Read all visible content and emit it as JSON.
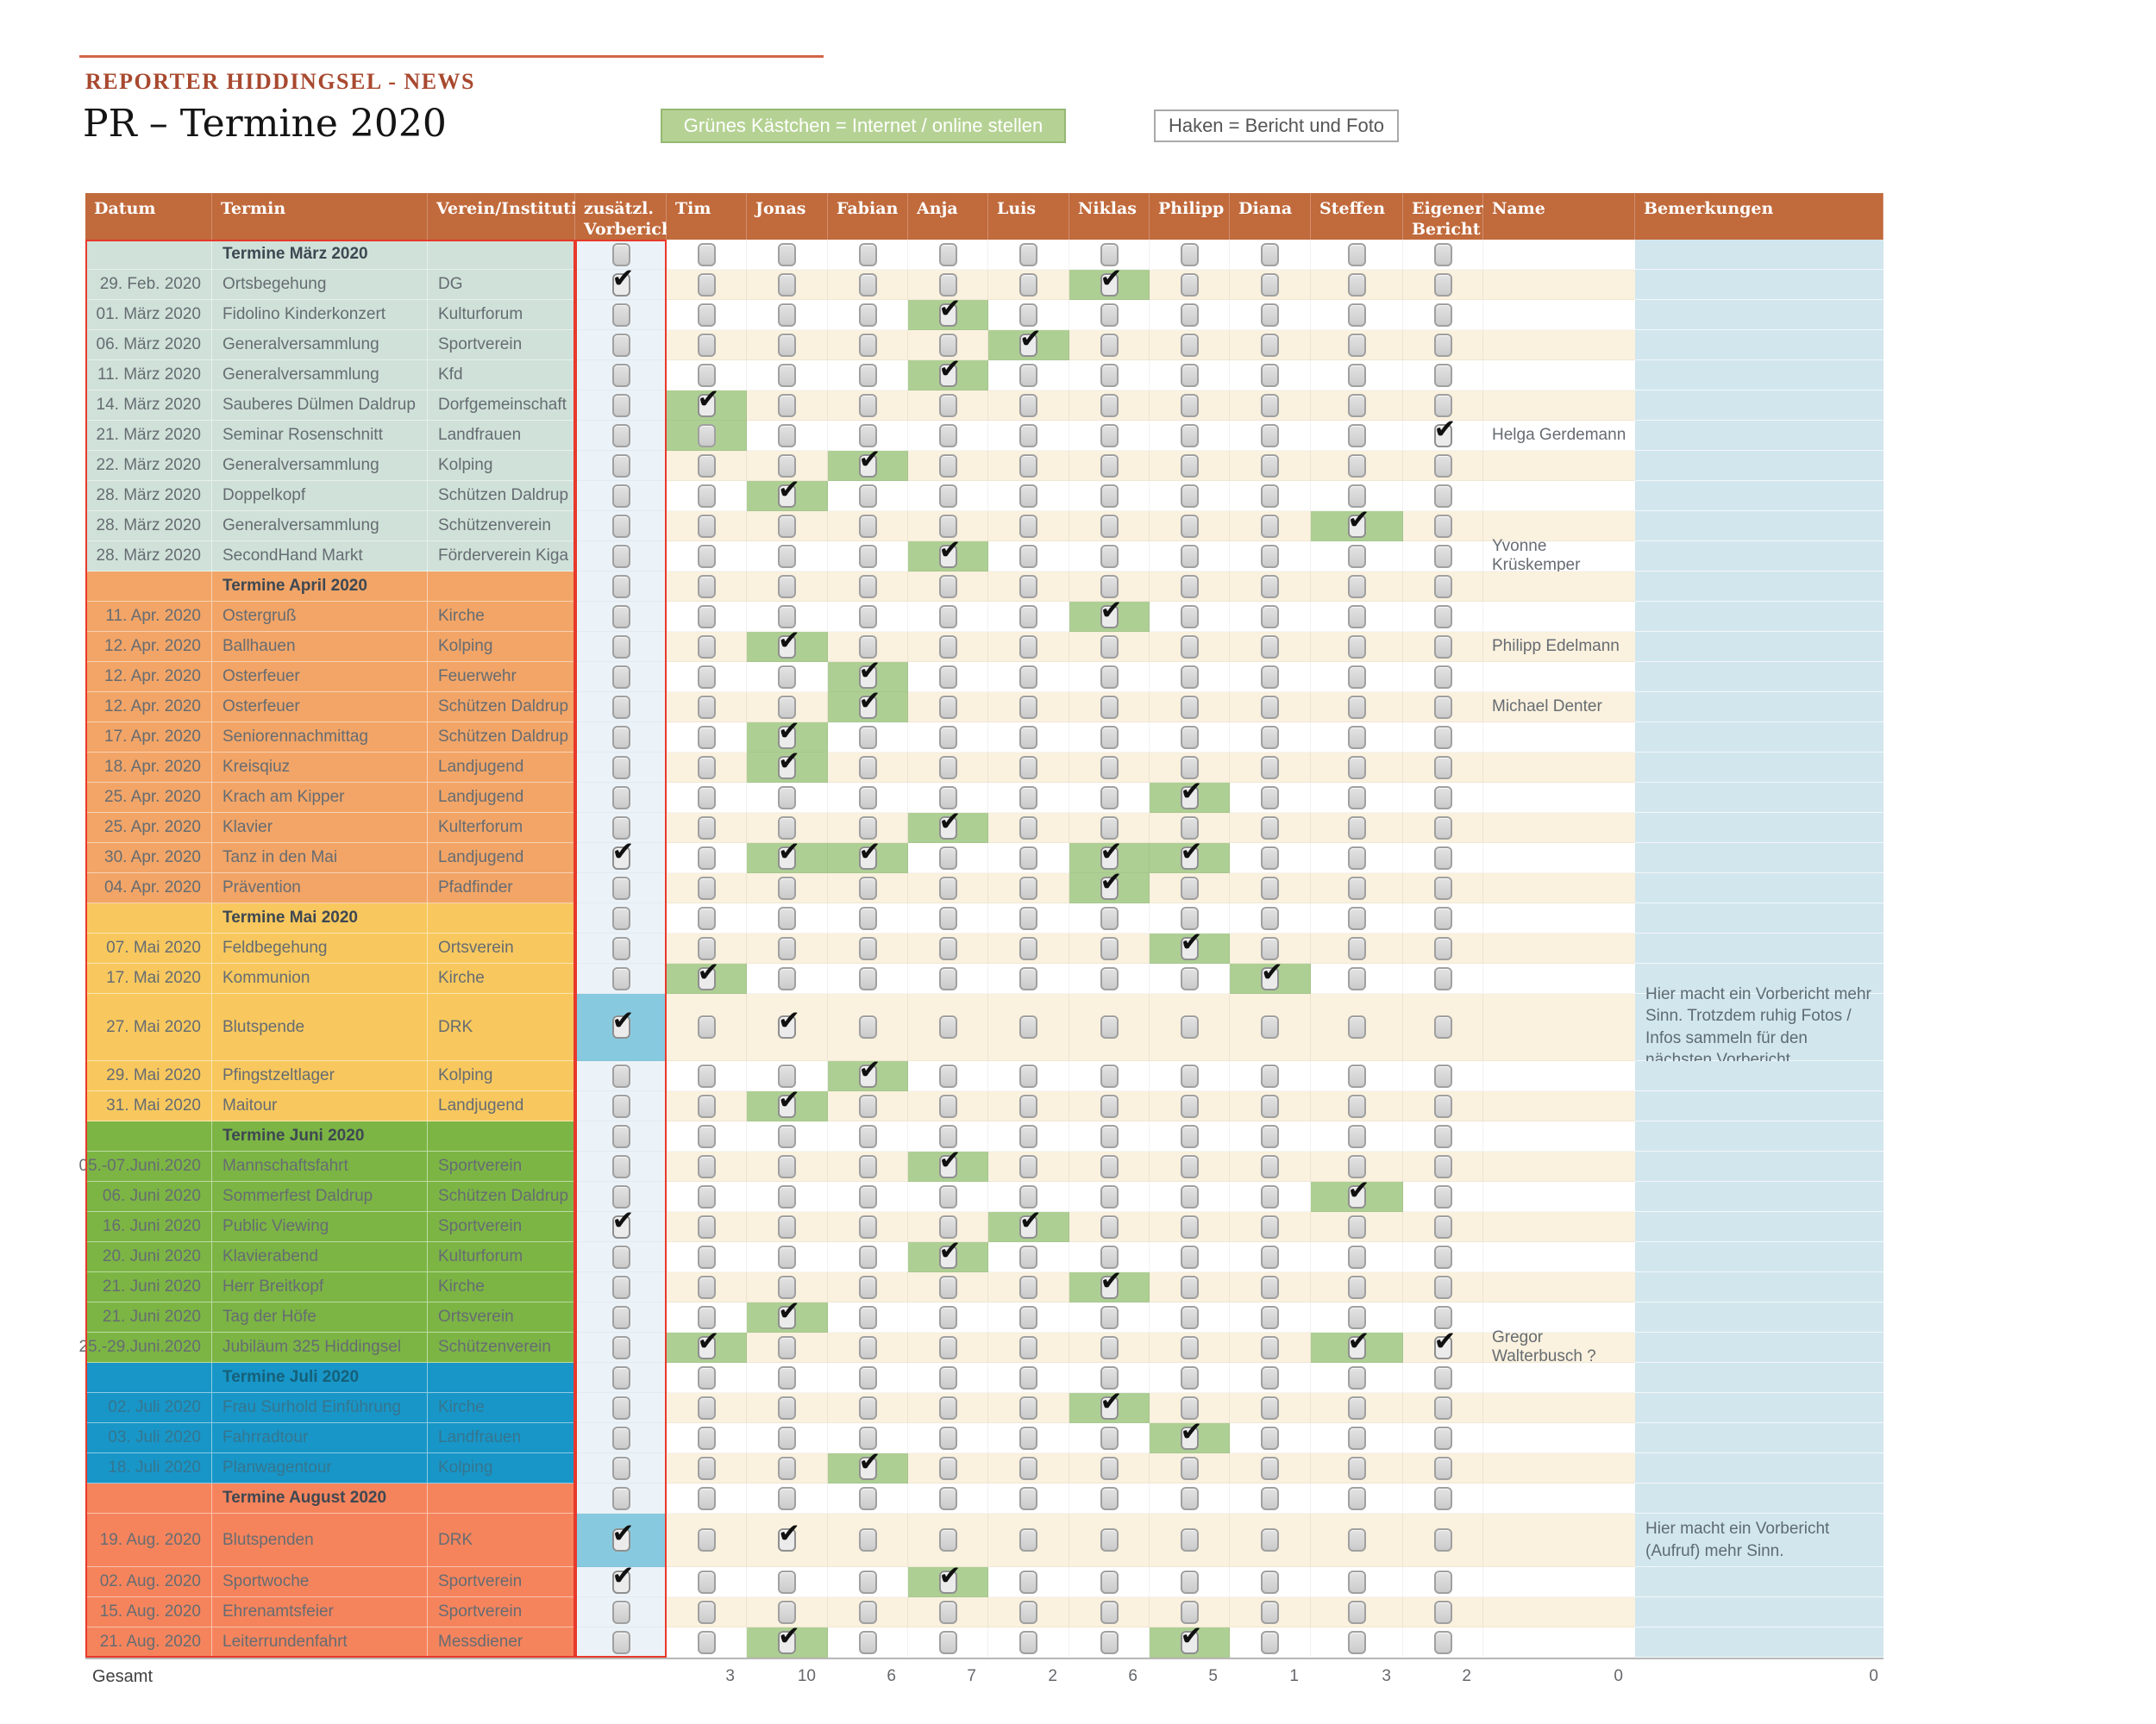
{
  "header": {
    "brand": "REPORTER HIDDINGSEL - NEWS",
    "title": "PR – Termine 2020",
    "legend_green": "Grünes Kästchen = Internet / online stellen",
    "legend_haken": "Haken = Bericht und Foto"
  },
  "colors": {
    "header_bg": "#C16A3C",
    "green_highlight": "#AECF94",
    "blue_highlight": "#87CADF",
    "red_border": "#E8392B",
    "stripe_cream": "#FAF1DE",
    "bemerkungen_bg": "#D2E6ED",
    "legend_green_bg": "#B5D294"
  },
  "table": {
    "column_labels": [
      "Datum",
      "Termin",
      "Verein/Institution",
      "zusätzl.\nVorbericht",
      "Tim",
      "Jonas",
      "Fabian",
      "Anja",
      "Luis",
      "Niklas",
      "Philipp",
      "Diana",
      "Steffen",
      "Eigener\nBericht",
      "Name",
      "Bemerkungen"
    ],
    "check_keys": [
      "Tim",
      "Jonas",
      "Fabian",
      "Anja",
      "Luis",
      "Niklas",
      "Philipp",
      "Diana",
      "Steffen",
      "Eigener"
    ],
    "sections": [
      {
        "label": "Termine März 2020",
        "bg": "#CFE1D8",
        "rows": [
          {
            "datum": "29. Feb. 2020",
            "termin": "Ortsbegehung",
            "verein": "DG",
            "vb": "check",
            "checks": {
              "Niklas": "gc"
            }
          },
          {
            "datum": "01. März 2020",
            "termin": "Fidolino Kinderkonzert",
            "verein": "Kulturforum",
            "checks": {
              "Anja": "gc"
            }
          },
          {
            "datum": "06. März 2020",
            "termin": "Generalversammlung",
            "verein": "Sportverein",
            "checks": {
              "Luis": "gc"
            }
          },
          {
            "datum": "11. März 2020",
            "termin": "Generalversammlung",
            "verein": "Kfd",
            "checks": {
              "Anja": "gc"
            }
          },
          {
            "datum": "14. März 2020",
            "termin": "Sauberes Dülmen Daldrup",
            "verein": "Dorfgemeinschaft",
            "checks": {
              "Tim": "gc"
            }
          },
          {
            "datum": "21. März 2020",
            "termin": "Seminar Rosenschnitt",
            "verein": "Landfrauen",
            "checks": {
              "Tim": "g",
              "Eigener": "c"
            },
            "name": "Helga Gerdemann"
          },
          {
            "datum": "22. März 2020",
            "termin": "Generalversammlung",
            "verein": "Kolping",
            "checks": {
              "Fabian": "gc"
            }
          },
          {
            "datum": "28. März 2020",
            "termin": "Doppelkopf",
            "verein": "Schützen Daldrup",
            "checks": {
              "Jonas": "gc"
            }
          },
          {
            "datum": "28. März 2020",
            "termin": "Generalversammlung",
            "verein": "Schützenverein",
            "checks": {
              "Steffen": "gc"
            }
          },
          {
            "datum": "28. März 2020",
            "termin": "SecondHand Markt",
            "verein": "Förderverein Kiga",
            "checks": {
              "Anja": "gc"
            },
            "name": "Yvonne Krüskemper"
          }
        ]
      },
      {
        "label": "Termine April 2020",
        "bg": "#F2A567",
        "rows": [
          {
            "datum": "11. Apr. 2020",
            "termin": "Ostergruß",
            "verein": "Kirche",
            "checks": {
              "Niklas": "gc"
            }
          },
          {
            "datum": "12. Apr. 2020",
            "termin": "Ballhauen",
            "verein": "Kolping",
            "checks": {
              "Jonas": "gc"
            },
            "name": "Philipp Edelmann"
          },
          {
            "datum": "12. Apr. 2020",
            "termin": "Osterfeuer",
            "verein": "Feuerwehr",
            "checks": {
              "Fabian": "gc"
            }
          },
          {
            "datum": "12. Apr. 2020",
            "termin": "Osterfeuer",
            "verein": "Schützen Daldrup",
            "checks": {
              "Fabian": "gc"
            },
            "name": "Michael Denter"
          },
          {
            "datum": "17. Apr. 2020",
            "termin": "Seniorennachmittag",
            "verein": "Schützen Daldrup",
            "checks": {
              "Jonas": "gc"
            }
          },
          {
            "datum": "18. Apr. 2020",
            "termin": "Kreisqiuz",
            "verein": "Landjugend",
            "checks": {
              "Jonas": "gc"
            }
          },
          {
            "datum": "25. Apr. 2020",
            "termin": "Krach am Kipper",
            "verein": "Landjugend",
            "checks": {
              "Philipp": "gc"
            }
          },
          {
            "datum": "25. Apr. 2020",
            "termin": "Klavier",
            "verein": "Kulterforum",
            "checks": {
              "Anja": "gc"
            }
          },
          {
            "datum": "30. Apr. 2020",
            "termin": "Tanz in den Mai",
            "verein": "Landjugend",
            "vb": "check",
            "checks": {
              "Jonas": "gc",
              "Fabian": "gc",
              "Niklas": "gc",
              "Philipp": "gc"
            }
          },
          {
            "datum": "04. Apr. 2020",
            "termin": "Prävention",
            "verein": "Pfadfinder",
            "checks": {
              "Niklas": "gc"
            }
          }
        ]
      },
      {
        "label": "Termine Mai 2020",
        "bg": "#F8C85E",
        "rows": [
          {
            "datum": "07. Mai 2020",
            "termin": "Feldbegehung",
            "verein": "Ortsverein",
            "checks": {
              "Philipp": "gc"
            }
          },
          {
            "datum": "17. Mai 2020",
            "termin": "Kommunion",
            "verein": "Kirche",
            "checks": {
              "Tim": "gc",
              "Diana": "gc"
            }
          },
          {
            "datum": "27. Mai 2020",
            "termin": "Blutspende",
            "verein": "DRK",
            "vb": "blue-check",
            "checks": {
              "Jonas": "c"
            },
            "bem": "Hier macht ein Vorbericht mehr Sinn. Trotzdem ruhig Fotos / Infos sammeln für den nächsten Vorbericht.",
            "h": 78
          },
          {
            "datum": "29. Mai 2020",
            "termin": "Pfingstzeltlager",
            "verein": "Kolping",
            "checks": {
              "Fabian": "gc"
            }
          },
          {
            "datum": "31. Mai 2020",
            "termin": "Maitour",
            "verein": "Landjugend",
            "checks": {
              "Jonas": "gc"
            }
          }
        ]
      },
      {
        "label": "Termine Juni 2020",
        "bg": "#7CB544",
        "rows": [
          {
            "datum": "05.-07.Juni.2020",
            "termin": "Mannschaftsfahrt",
            "verein": "Sportverein",
            "checks": {
              "Anja": "gc"
            }
          },
          {
            "datum": "06. Juni 2020",
            "termin": "Sommerfest Daldrup",
            "verein": "Schützen Daldrup",
            "checks": {
              "Steffen": "gc"
            }
          },
          {
            "datum": "16. Juni 2020",
            "termin": "Public Viewing",
            "verein": "Sportverein",
            "vb": "check",
            "checks": {
              "Luis": "gc"
            }
          },
          {
            "datum": "20. Juni 2020",
            "termin": "Klavierabend",
            "verein": "Kulturforum",
            "checks": {
              "Anja": "gc"
            }
          },
          {
            "datum": "21. Juni 2020",
            "termin": "Herr Breitkopf",
            "verein": "Kirche",
            "checks": {
              "Niklas": "gc"
            }
          },
          {
            "datum": "21. Juni 2020",
            "termin": "Tag der Höfe",
            "verein": "Ortsverein",
            "checks": {
              "Jonas": "gc"
            }
          },
          {
            "datum": "25.-29.Juni.2020",
            "termin": "Jubiläum 325 Hiddingsel",
            "verein": "Schützenverein",
            "checks": {
              "Tim": "gc",
              "Steffen": "gc",
              "Eigener": "c"
            },
            "name": "Gregor Walterbusch ?"
          }
        ]
      },
      {
        "label": "Termine Juli 2020",
        "bg": "#1896C8",
        "label_color": "#166079",
        "text_color": "#35758E",
        "rows": [
          {
            "datum": "02. Juli 2020",
            "termin": "Frau Surhold Einführung",
            "verein": "Kirche",
            "checks": {
              "Niklas": "gc"
            }
          },
          {
            "datum": "03. Juli 2020",
            "termin": "Fahrradtour",
            "verein": "Landfrauen",
            "checks": {
              "Philipp": "gc"
            }
          },
          {
            "datum": "18. Juli 2020",
            "termin": "Planwagentour",
            "verein": "Kolping",
            "checks": {
              "Fabian": "gc"
            }
          }
        ]
      },
      {
        "label": "Termine August 2020",
        "bg": "#F5845C",
        "rows": [
          {
            "datum": "19. Aug. 2020",
            "termin": "Blutspenden",
            "verein": "DRK",
            "vb": "blue-check",
            "checks": {
              "Jonas": "c"
            },
            "bem": "Hier macht ein Vorbericht (Aufruf) mehr Sinn.",
            "h": 62
          },
          {
            "datum": "02. Aug. 2020",
            "termin": "Sportwoche",
            "verein": "Sportverein",
            "vb": "check",
            "checks": {
              "Anja": "gc"
            }
          },
          {
            "datum": "15. Aug. 2020",
            "termin": "Ehrenamtsfeier",
            "verein": "Sportverein"
          },
          {
            "datum": "21. Aug. 2020",
            "termin": "Leiterrundenfahrt",
            "verein": "Messdiener",
            "checks": {
              "Jonas": "gc",
              "Philipp": "gc"
            }
          }
        ]
      }
    ],
    "gesamt": {
      "label": "Gesamt",
      "totals": {
        "Tim": "3",
        "Jonas": "10",
        "Fabian": "6",
        "Anja": "7",
        "Luis": "2",
        "Niklas": "6",
        "Philipp": "5",
        "Diana": "1",
        "Steffen": "3",
        "Eigener": "2"
      },
      "name_total": "0",
      "bemerkungen_total": "0"
    }
  }
}
